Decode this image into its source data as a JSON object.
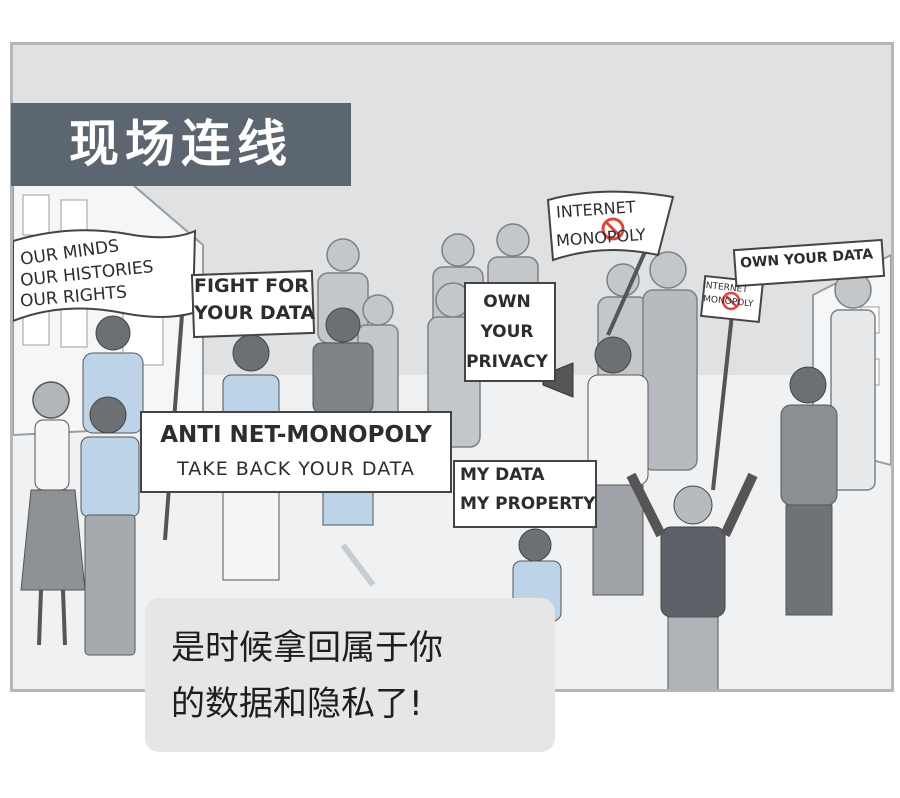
{
  "title_tag": "现场连线",
  "speech_bubble": {
    "line1": "是时候拿回属于你",
    "line2": "的数据和隐私了!"
  },
  "signs": {
    "our_minds": [
      "OUR MINDS",
      "OUR HISTORIES",
      "OUR RIGHTS"
    ],
    "fight_for": [
      "FIGHT FOR",
      "YOUR DATA"
    ],
    "own_privacy": [
      "OWN",
      "YOUR",
      "PRIVACY"
    ],
    "internet_flag": [
      "INTERNET",
      "MONOPOLY"
    ],
    "small_sign": [
      "INTERNET",
      "MONOPOLY"
    ],
    "own_your_data": "OWN YOUR DATA",
    "banner": [
      "ANTI NET-MONOPOLY",
      "TAKE BACK YOUR DATA"
    ],
    "my_data": [
      "MY DATA",
      "MY PROPERTY"
    ]
  },
  "colors": {
    "panel_bg": "#dfe1e3",
    "title_bg": "#5b6670",
    "bubble_bg": "#e6e6e6",
    "no_symbol": "#e0443c"
  },
  "icons": [
    "no-entry-icon",
    "megaphone-icon"
  ]
}
